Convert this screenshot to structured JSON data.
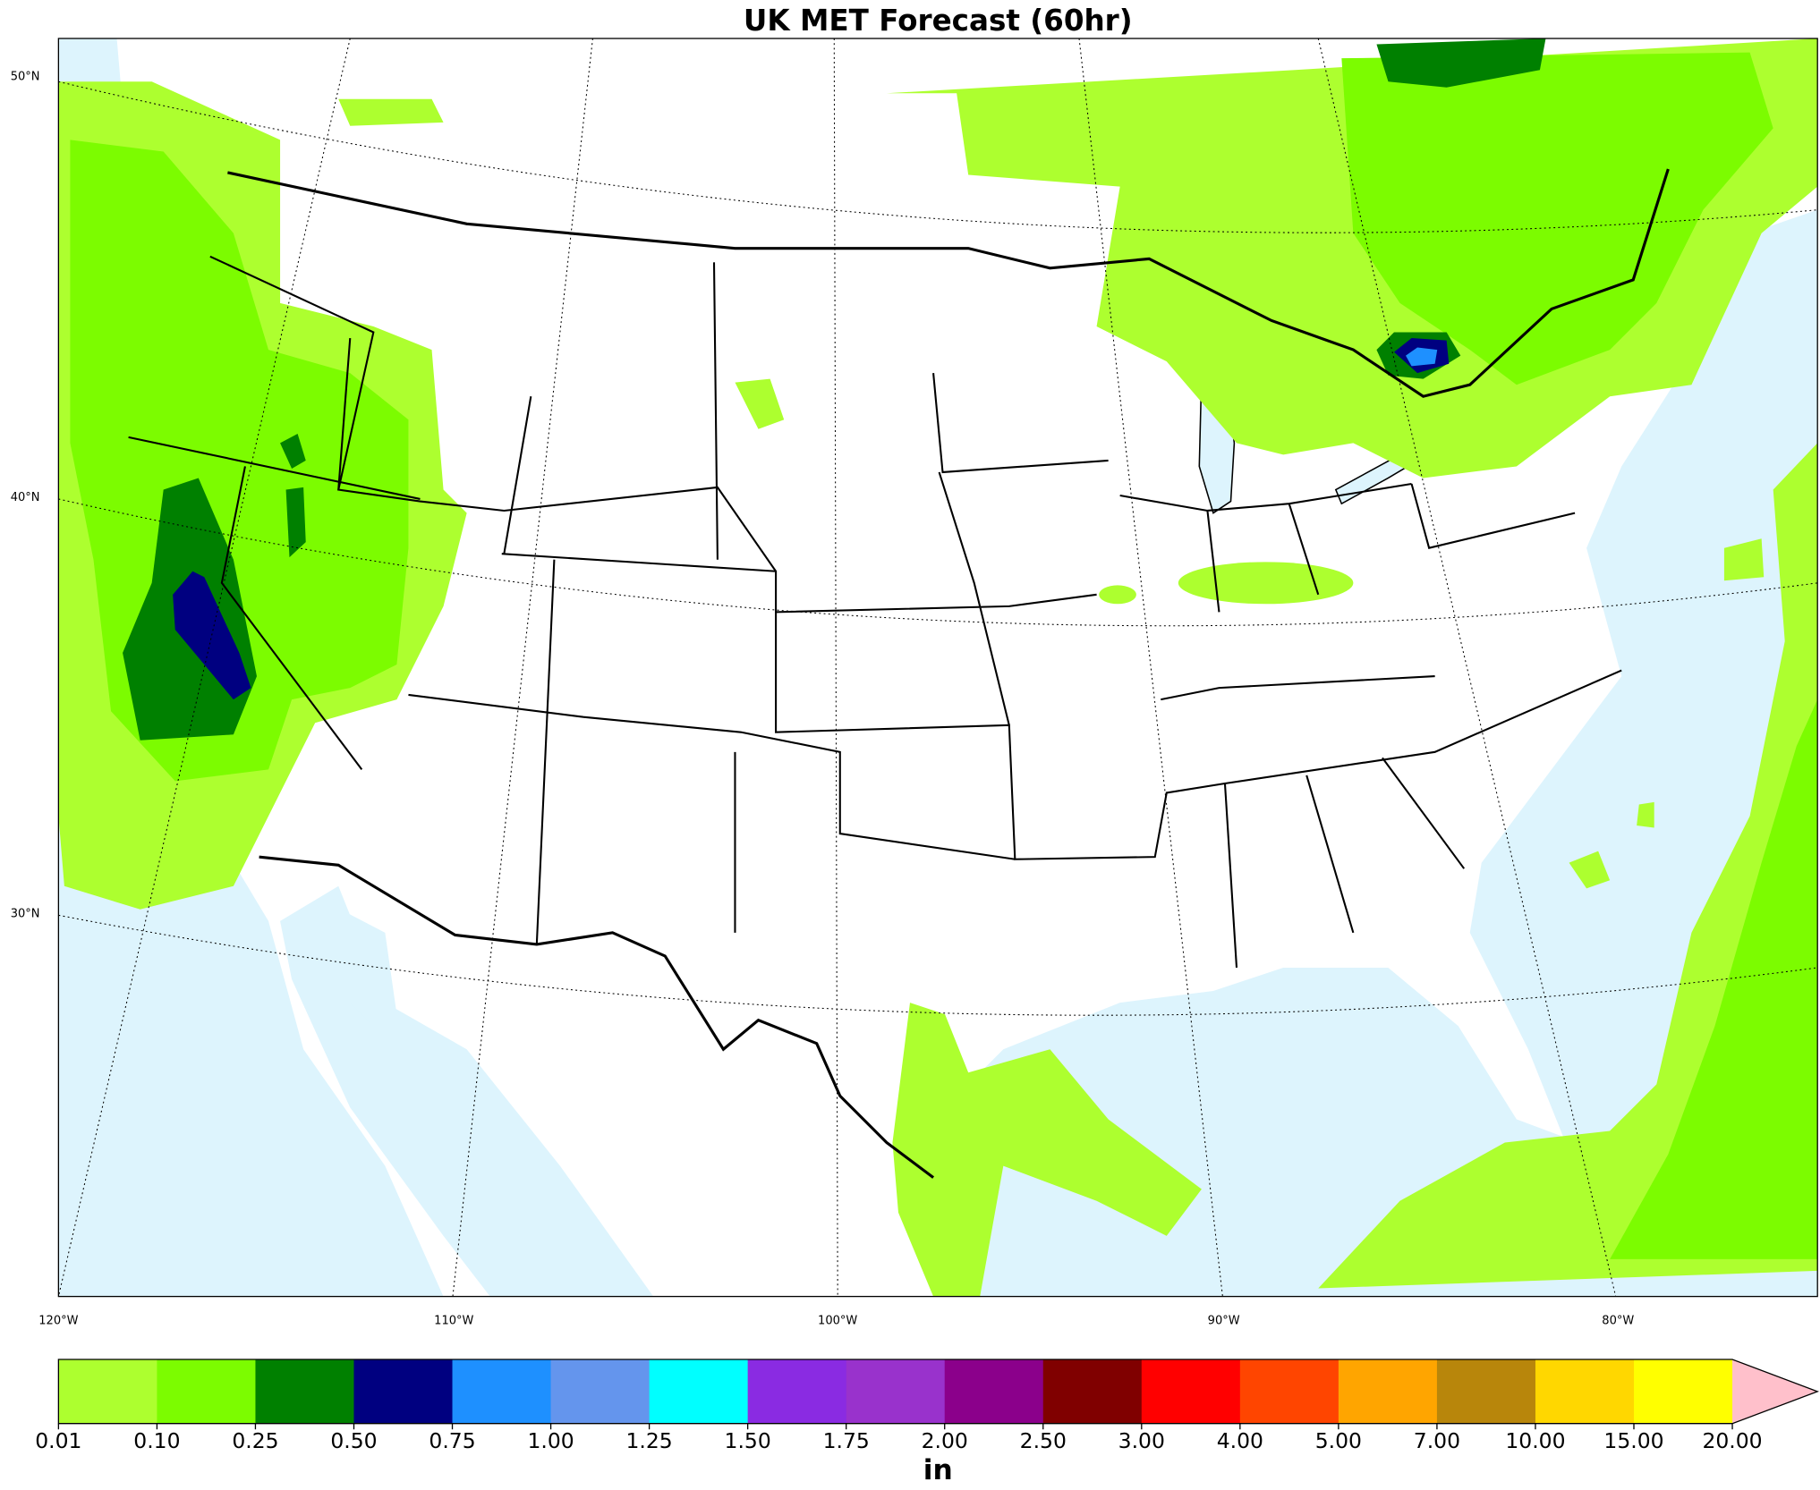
{
  "header": {
    "title": "UK MET Forecast (60hr)"
  },
  "map": {
    "lat_labels": [
      "50°N",
      "40°N",
      "30°N"
    ],
    "lon_labels": [
      "120°W",
      "110°W",
      "100°W",
      "90°W",
      "80°W"
    ]
  },
  "colorbar": {
    "ticks": [
      "0.01",
      "0.10",
      "0.25",
      "0.50",
      "0.75",
      "1.00",
      "1.25",
      "1.50",
      "1.75",
      "2.00",
      "2.50",
      "3.00",
      "4.00",
      "5.00",
      "7.00",
      "10.00",
      "15.00",
      "20.00"
    ],
    "colors": [
      "#adff2f",
      "#7cfc00",
      "#008000",
      "#000080",
      "#1e90ff",
      "#6495ed",
      "#00ffff",
      "#8a2be2",
      "#9932cc",
      "#8b008b",
      "#800000",
      "#ff0000",
      "#ff4500",
      "#ffa500",
      "#b8860b",
      "#ffd700",
      "#ffff00"
    ],
    "extend_color": "#ffc0cb",
    "unit": "in"
  }
}
